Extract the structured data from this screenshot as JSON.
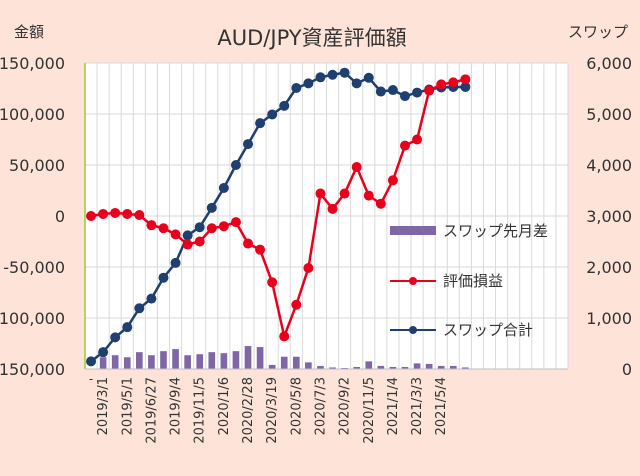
{
  "chart_data": {
    "type": "combo",
    "title": "AUD/JPY資産評価額",
    "y_left_label": "金額",
    "y_right_label": "スワップ",
    "y_left_ticks": [
      "150,000",
      "100,000",
      "50,000",
      "0",
      "-50,000",
      "-100,000",
      "-150,000"
    ],
    "y_left_tick_values": [
      150000,
      100000,
      50000,
      0,
      -50000,
      -100000,
      -150000
    ],
    "y_right_ticks": [
      "6,000",
      "5,000",
      "4,000",
      "3,000",
      "2,000",
      "1,000",
      "0"
    ],
    "y_right_tick_values": [
      6000,
      5000,
      4000,
      3000,
      2000,
      1000,
      0
    ],
    "ylim_left": [
      -150000,
      150000
    ],
    "ylim_right": [
      0,
      6000
    ],
    "x_ticks": [
      "2019/3/1",
      "2019/5/1",
      "2019/6/27",
      "2019/9/4",
      "2019/11/5",
      "2020/1/6",
      "2020/2/28",
      "2020/3/19",
      "2020/5/8",
      "2020/7/3",
      "2020/9/2",
      "2020/11/5",
      "2021/1/4",
      "2021/3/3",
      "2021/5/4"
    ],
    "x_tick_index": [
      1,
      3,
      5,
      7,
      9,
      11,
      13,
      15,
      17,
      19,
      21,
      23,
      25,
      27,
      29
    ],
    "first_x_label": "-",
    "n_slots": 40,
    "legend": [
      {
        "name": "スワップ先月差",
        "marker": "bar",
        "color": "#7f66a6"
      },
      {
        "name": "評価損益",
        "marker": "line-dot",
        "color": "#e8001c"
      },
      {
        "name": "スワップ合計",
        "marker": "line-dot",
        "color": "#1f3f6e"
      }
    ],
    "series": [
      {
        "name": "スワップ先月差",
        "type": "bar",
        "axis": "right",
        "color": "#7f66a6",
        "values": [
          0,
          230,
          270,
          230,
          330,
          270,
          350,
          390,
          270,
          290,
          330,
          310,
          350,
          450,
          430,
          80,
          240,
          240,
          130,
          60,
          30,
          20,
          40,
          150,
          60,
          40,
          40,
          110,
          100,
          60,
          60,
          30,
          0,
          0,
          0,
          0,
          0,
          0,
          0,
          0
        ]
      },
      {
        "name": "評価損益",
        "type": "line",
        "axis": "left",
        "color": "#e8001c",
        "values": [
          0,
          2000,
          3000,
          2000,
          1000,
          -9000,
          -12000,
          -18000,
          -28000,
          -25000,
          -12000,
          -10000,
          -6000,
          -27000,
          -33000,
          -65000,
          -118000,
          -87000,
          -51000,
          22000,
          7000,
          22000,
          48000,
          20000,
          12000,
          35000,
          69000,
          75000,
          123000,
          129000,
          131000,
          134000
        ]
      },
      {
        "name": "スワップ合計",
        "type": "line",
        "axis": "right",
        "color": "#1f3f6e",
        "values": [
          150,
          330,
          620,
          820,
          1190,
          1380,
          1790,
          2080,
          2620,
          2780,
          3160,
          3550,
          4000,
          4410,
          4820,
          4990,
          5160,
          5510,
          5600,
          5720,
          5770,
          5810,
          5600,
          5710,
          5440,
          5470,
          5350,
          5420,
          5480,
          5520,
          5530,
          5530
        ]
      }
    ]
  }
}
